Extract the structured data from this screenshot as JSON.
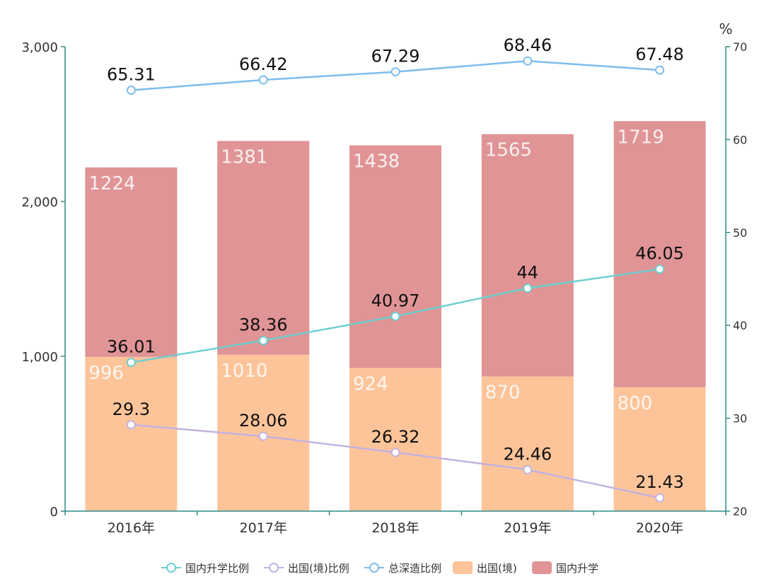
{
  "chart_data": {
    "type": "bar",
    "categories": [
      "2016年",
      "2017年",
      "2018年",
      "2019年",
      "2020年"
    ],
    "left_axis": {
      "ticks": [
        "0",
        "1,000",
        "2,000",
        "3,000"
      ],
      "min": 0,
      "max": 3000
    },
    "right_axis": {
      "unit": "%",
      "ticks": [
        "20",
        "30",
        "40",
        "50",
        "60",
        "70"
      ],
      "min": 20,
      "max": 70
    },
    "bar_series": [
      {
        "name": "出国(境)",
        "color": "#fdc49a",
        "values": [
          996,
          1010,
          924,
          870,
          800
        ]
      },
      {
        "name": "国内升学",
        "color": "#e09496",
        "values": [
          1224,
          1381,
          1438,
          1565,
          1719
        ]
      }
    ],
    "line_series": [
      {
        "name": "国内升学比例",
        "color": "#6ecfcf",
        "values": [
          36.01,
          38.36,
          40.97,
          44,
          46.05
        ]
      },
      {
        "name": "出国(境)比例",
        "color": "#c2b2de",
        "values": [
          29.3,
          28.06,
          26.32,
          24.46,
          21.43
        ]
      },
      {
        "name": "总深造比例",
        "color": "#7cbdee",
        "values": [
          65.31,
          66.42,
          67.29,
          68.46,
          67.48
        ]
      }
    ],
    "legend": {
      "position": "bottom",
      "items": [
        {
          "name": "国内升学比例",
          "kind": "line",
          "color": "#6ecfcf"
        },
        {
          "name": "出国(境)比例",
          "kind": "line",
          "color": "#c2b2de"
        },
        {
          "name": "总深造比例",
          "kind": "line",
          "color": "#7cbdee"
        },
        {
          "name": "出国(境)",
          "kind": "bar",
          "color": "#fdc49a"
        },
        {
          "name": "国内升学",
          "kind": "bar",
          "color": "#e09496"
        }
      ]
    },
    "axis_color": "#2f8a8a",
    "grid": false
  }
}
